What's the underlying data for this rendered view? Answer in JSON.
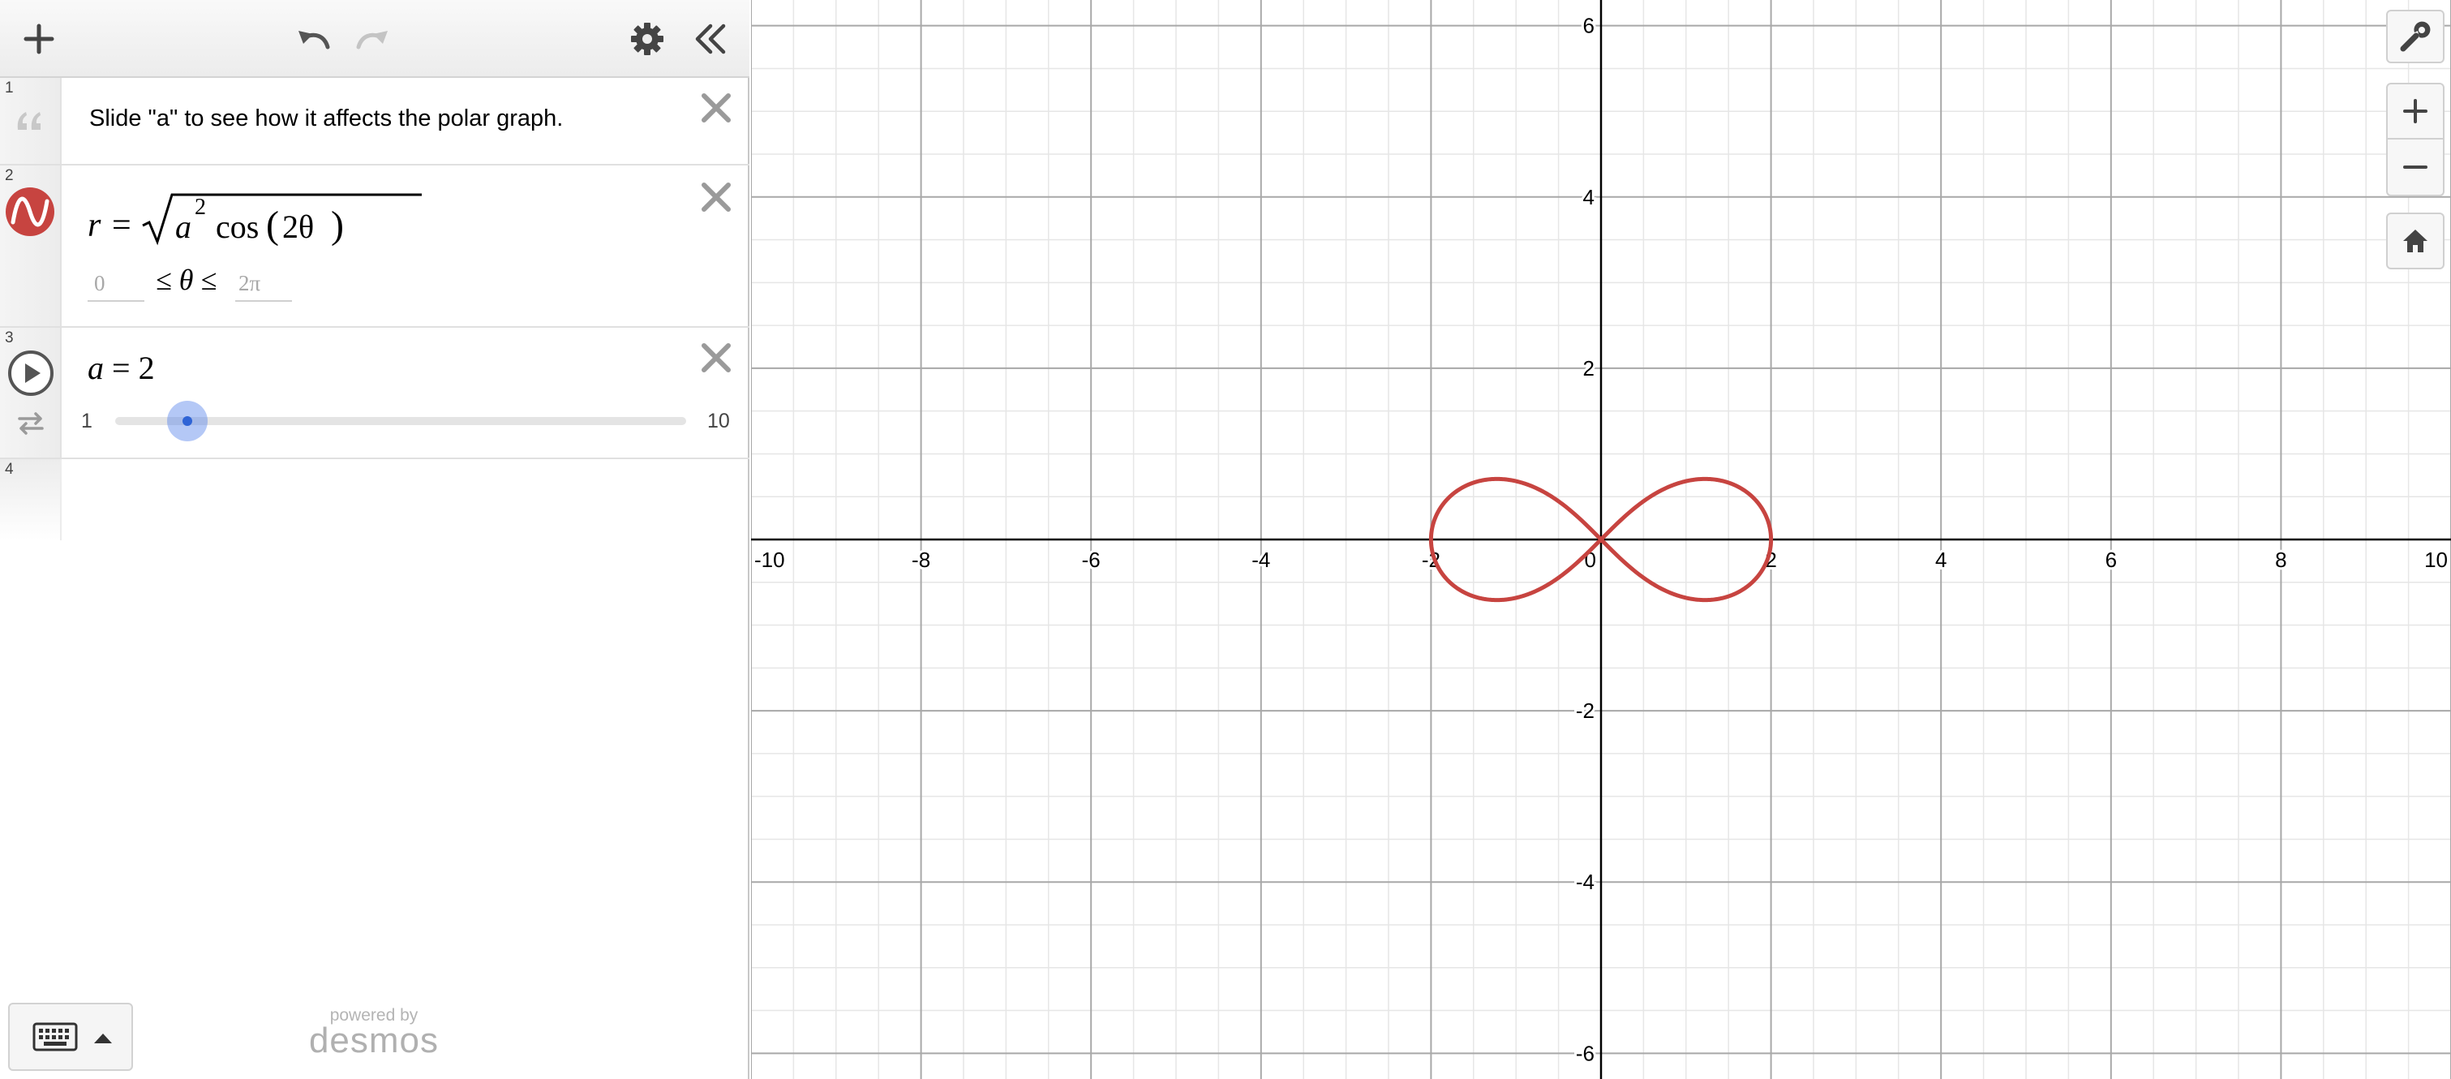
{
  "panel": {
    "rows": [
      {
        "num": "1",
        "type": "note",
        "text": "Slide \"a\" to see how it affects the polar graph."
      },
      {
        "num": "2",
        "type": "expression",
        "lhs": "r",
        "eq": "=",
        "a": "a",
        "exp": "2",
        "func": "cos",
        "arg": "2θ",
        "domain_min": "0",
        "domain_rel": "≤ θ ≤",
        "domain_max": "2π",
        "color": "#c74440"
      },
      {
        "num": "3",
        "type": "slider",
        "var": "a",
        "eq": "=",
        "value": 2,
        "value_text": "2",
        "min": 1,
        "max": 10,
        "min_label": "1",
        "max_label": "10"
      },
      {
        "num": "4",
        "type": "empty"
      }
    ],
    "footer": {
      "powered": "powered by",
      "brand": "desmos"
    }
  },
  "graph": {
    "xlim": [
      -10,
      10
    ],
    "ylim": [
      -6.3,
      6.3
    ],
    "x_ticks": [
      "-10",
      "-8",
      "-6",
      "-4",
      "-2",
      "0",
      "2",
      "4",
      "6",
      "8",
      "10"
    ],
    "y_ticks": [
      "6",
      "4",
      "2",
      "-2",
      "-4",
      "-6"
    ],
    "curve": {
      "equation": "r = sqrt(a^2 cos(2θ))",
      "a": 2,
      "color": "#c74440"
    }
  },
  "icons": {
    "add": "plus-icon",
    "undo": "undo-icon",
    "redo": "redo-icon",
    "settings": "gear-icon",
    "collapse": "double-chevron-left-icon",
    "wrench": "wrench-icon",
    "zoom_in": "zoom-in-icon",
    "zoom_out": "zoom-out-icon",
    "home": "home-icon",
    "keyboard": "keyboard-icon",
    "play": "play-icon"
  }
}
